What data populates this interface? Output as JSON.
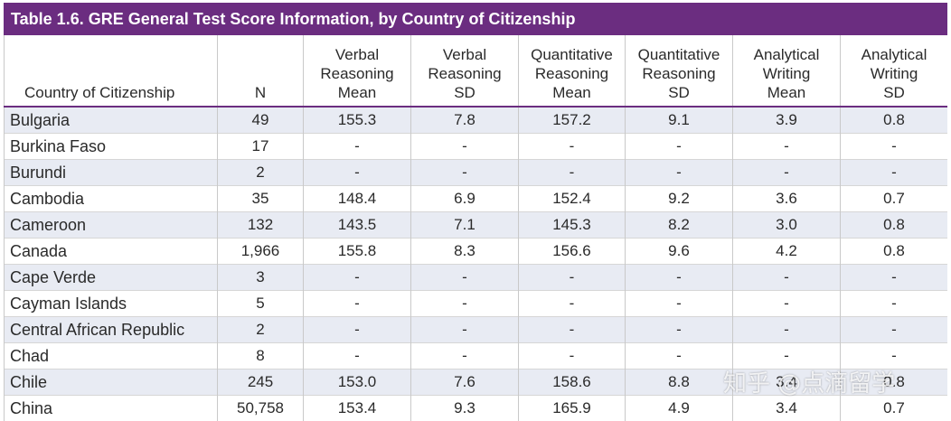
{
  "title": "Table 1.6. GRE General Test Score Information, by Country of Citizenship",
  "headers": {
    "country": "Country of Citizenship",
    "n": "N",
    "vr_mean": [
      "Verbal",
      "Reasoning",
      "Mean"
    ],
    "vr_sd": [
      "Verbal",
      "Reasoning",
      "SD"
    ],
    "qr_mean": [
      "Quantitative",
      "Reasoning",
      "Mean"
    ],
    "qr_sd": [
      "Quantitative",
      "Reasoning",
      "SD"
    ],
    "aw_mean": [
      "Analytical",
      "Writing",
      "Mean"
    ],
    "aw_sd": [
      "Analytical",
      "Writing",
      "SD"
    ]
  },
  "rows": [
    {
      "country": "Bulgaria",
      "n": "49",
      "vr_mean": "155.3",
      "vr_sd": "7.8",
      "qr_mean": "157.2",
      "qr_sd": "9.1",
      "aw_mean": "3.9",
      "aw_sd": "0.8"
    },
    {
      "country": "Burkina Faso",
      "n": "17",
      "vr_mean": "-",
      "vr_sd": "-",
      "qr_mean": "-",
      "qr_sd": "-",
      "aw_mean": "-",
      "aw_sd": "-"
    },
    {
      "country": "Burundi",
      "n": "2",
      "vr_mean": "-",
      "vr_sd": "-",
      "qr_mean": "-",
      "qr_sd": "-",
      "aw_mean": "-",
      "aw_sd": "-"
    },
    {
      "country": "Cambodia",
      "n": "35",
      "vr_mean": "148.4",
      "vr_sd": "6.9",
      "qr_mean": "152.4",
      "qr_sd": "9.2",
      "aw_mean": "3.6",
      "aw_sd": "0.7"
    },
    {
      "country": "Cameroon",
      "n": "132",
      "vr_mean": "143.5",
      "vr_sd": "7.1",
      "qr_mean": "145.3",
      "qr_sd": "8.2",
      "aw_mean": "3.0",
      "aw_sd": "0.8"
    },
    {
      "country": "Canada",
      "n": "1,966",
      "vr_mean": "155.8",
      "vr_sd": "8.3",
      "qr_mean": "156.6",
      "qr_sd": "9.6",
      "aw_mean": "4.2",
      "aw_sd": "0.8"
    },
    {
      "country": "Cape Verde",
      "n": "3",
      "vr_mean": "-",
      "vr_sd": "-",
      "qr_mean": "-",
      "qr_sd": "-",
      "aw_mean": "-",
      "aw_sd": "-"
    },
    {
      "country": "Cayman Islands",
      "n": "5",
      "vr_mean": "-",
      "vr_sd": "-",
      "qr_mean": "-",
      "qr_sd": "-",
      "aw_mean": "-",
      "aw_sd": "-"
    },
    {
      "country": "Central African Republic",
      "n": "2",
      "vr_mean": "-",
      "vr_sd": "-",
      "qr_mean": "-",
      "qr_sd": "-",
      "aw_mean": "-",
      "aw_sd": "-"
    },
    {
      "country": "Chad",
      "n": "8",
      "vr_mean": "-",
      "vr_sd": "-",
      "qr_mean": "-",
      "qr_sd": "-",
      "aw_mean": "-",
      "aw_sd": "-"
    },
    {
      "country": "Chile",
      "n": "245",
      "vr_mean": "153.0",
      "vr_sd": "7.6",
      "qr_mean": "158.6",
      "qr_sd": "8.8",
      "aw_mean": "3.4",
      "aw_sd": "0.8"
    },
    {
      "country": "China",
      "n": "50,758",
      "vr_mean": "153.4",
      "vr_sd": "9.3",
      "qr_mean": "165.9",
      "qr_sd": "4.9",
      "aw_mean": "3.4",
      "aw_sd": "0.7"
    }
  ],
  "watermark": "知乎 @点滴留学",
  "colors": {
    "title_bg": "#6b2d80",
    "alt_row": "#e8ebf3"
  }
}
